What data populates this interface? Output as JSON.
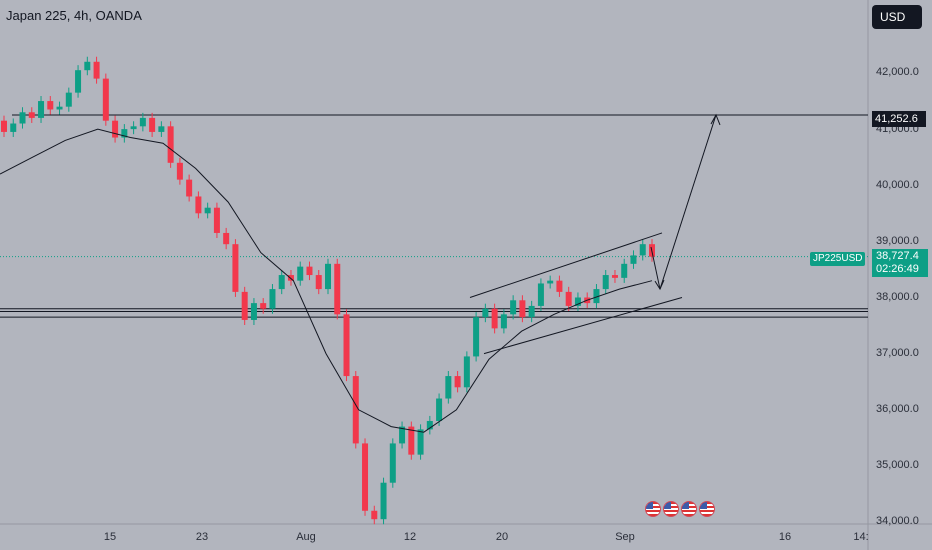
{
  "header": {
    "title": "Japan 225, 4h, OANDA",
    "currency_button": "USD"
  },
  "axis": {
    "y_labels": [
      "42,000.0",
      "41,000.0",
      "40,000.0",
      "39,000.0",
      "38,000.0",
      "37,000.0",
      "36,000.0",
      "35,000.0",
      "34,000.0"
    ],
    "x_labels": [
      "15",
      "23",
      "Aug",
      "12",
      "20",
      "Sep",
      "16",
      "14:"
    ]
  },
  "tags": {
    "target_price": "41,252.6",
    "symbol": "JP225USD",
    "last_price": "38,727.4",
    "countdown": "02:26:49"
  },
  "event_flags": [
    "us-flag-icon",
    "us-flag-icon",
    "us-flag-icon",
    "us-flag-icon"
  ],
  "colors": {
    "background": "#b2b5be",
    "up": "#0e9f86",
    "down": "#f2384c",
    "lines": "#131722",
    "axis_text": "#2a2e39"
  },
  "chart_data": {
    "type": "candlestick",
    "title": "Japan 225, 4h, OANDA",
    "symbol": "JP225USD",
    "ylim": [
      33950,
      42600
    ],
    "x_ticks": [
      "15",
      "23",
      "Aug",
      "12",
      "20",
      "Sep",
      "16",
      "14:"
    ],
    "y_ticks": [
      42000,
      41000,
      40000,
      39000,
      38000,
      37000,
      36000,
      35000,
      34000
    ],
    "last_price": 38727.4,
    "candles_close_path": [
      [
        41150,
        40950
      ],
      [
        40950,
        41100
      ],
      [
        41100,
        41300
      ],
      [
        41300,
        41200
      ],
      [
        41200,
        41500
      ],
      [
        41500,
        41350
      ],
      [
        41350,
        41400
      ],
      [
        41400,
        41650
      ],
      [
        41650,
        42050
      ],
      [
        42050,
        42200
      ],
      [
        42200,
        41900
      ],
      [
        41900,
        41150
      ],
      [
        41150,
        40850
      ],
      [
        40850,
        41000
      ],
      [
        41000,
        41050
      ],
      [
        41050,
        41200
      ],
      [
        41200,
        40950
      ],
      [
        40950,
        41050
      ],
      [
        41050,
        40400
      ],
      [
        40400,
        40100
      ],
      [
        40100,
        39800
      ],
      [
        39800,
        39500
      ],
      [
        39500,
        39600
      ],
      [
        39600,
        39150
      ],
      [
        39150,
        38950
      ],
      [
        38950,
        38100
      ],
      [
        38100,
        37600
      ],
      [
        37600,
        37900
      ],
      [
        37900,
        37800
      ],
      [
        37800,
        38150
      ],
      [
        38150,
        38400
      ],
      [
        38400,
        38300
      ],
      [
        38300,
        38550
      ],
      [
        38550,
        38400
      ],
      [
        38400,
        38150
      ],
      [
        38150,
        38600
      ],
      [
        38600,
        37700
      ],
      [
        37700,
        36600
      ],
      [
        36600,
        35400
      ],
      [
        35400,
        34200
      ],
      [
        34200,
        34050
      ],
      [
        34050,
        34700
      ],
      [
        34700,
        35400
      ],
      [
        35400,
        35700
      ],
      [
        35700,
        35200
      ],
      [
        35200,
        35650
      ],
      [
        35650,
        35800
      ],
      [
        35800,
        36200
      ],
      [
        36200,
        36600
      ],
      [
        36600,
        36400
      ],
      [
        36400,
        36950
      ],
      [
        36950,
        37650
      ],
      [
        37650,
        37800
      ],
      [
        37800,
        37450
      ],
      [
        37450,
        37700
      ],
      [
        37700,
        37950
      ],
      [
        37950,
        37650
      ],
      [
        37650,
        37850
      ],
      [
        37850,
        38250
      ],
      [
        38250,
        38300
      ],
      [
        38300,
        38100
      ],
      [
        38100,
        37850
      ],
      [
        37850,
        38000
      ],
      [
        38000,
        37900
      ],
      [
        37900,
        38150
      ],
      [
        38150,
        38400
      ],
      [
        38400,
        38350
      ],
      [
        38350,
        38600
      ],
      [
        38600,
        38750
      ],
      [
        38750,
        38950
      ],
      [
        38950,
        38727
      ]
    ],
    "moving_average": [
      [
        40200,
        40500,
        40800,
        41000,
        40850,
        40750,
        40300,
        39700,
        38800,
        38300,
        37000,
        36000,
        35700,
        35600,
        36000,
        36900,
        37400,
        37700,
        37950,
        38150,
        38300
      ]
    ],
    "horizontal_levels": [
      41252.6,
      37800,
      37750,
      37650
    ],
    "channel": {
      "upper": [
        [
          38000,
          39150
        ]
      ],
      "lower": [
        [
          37000,
          38000
        ]
      ]
    },
    "projection_arrows": [
      "up to 41,252.6",
      "down to channel support"
    ]
  }
}
